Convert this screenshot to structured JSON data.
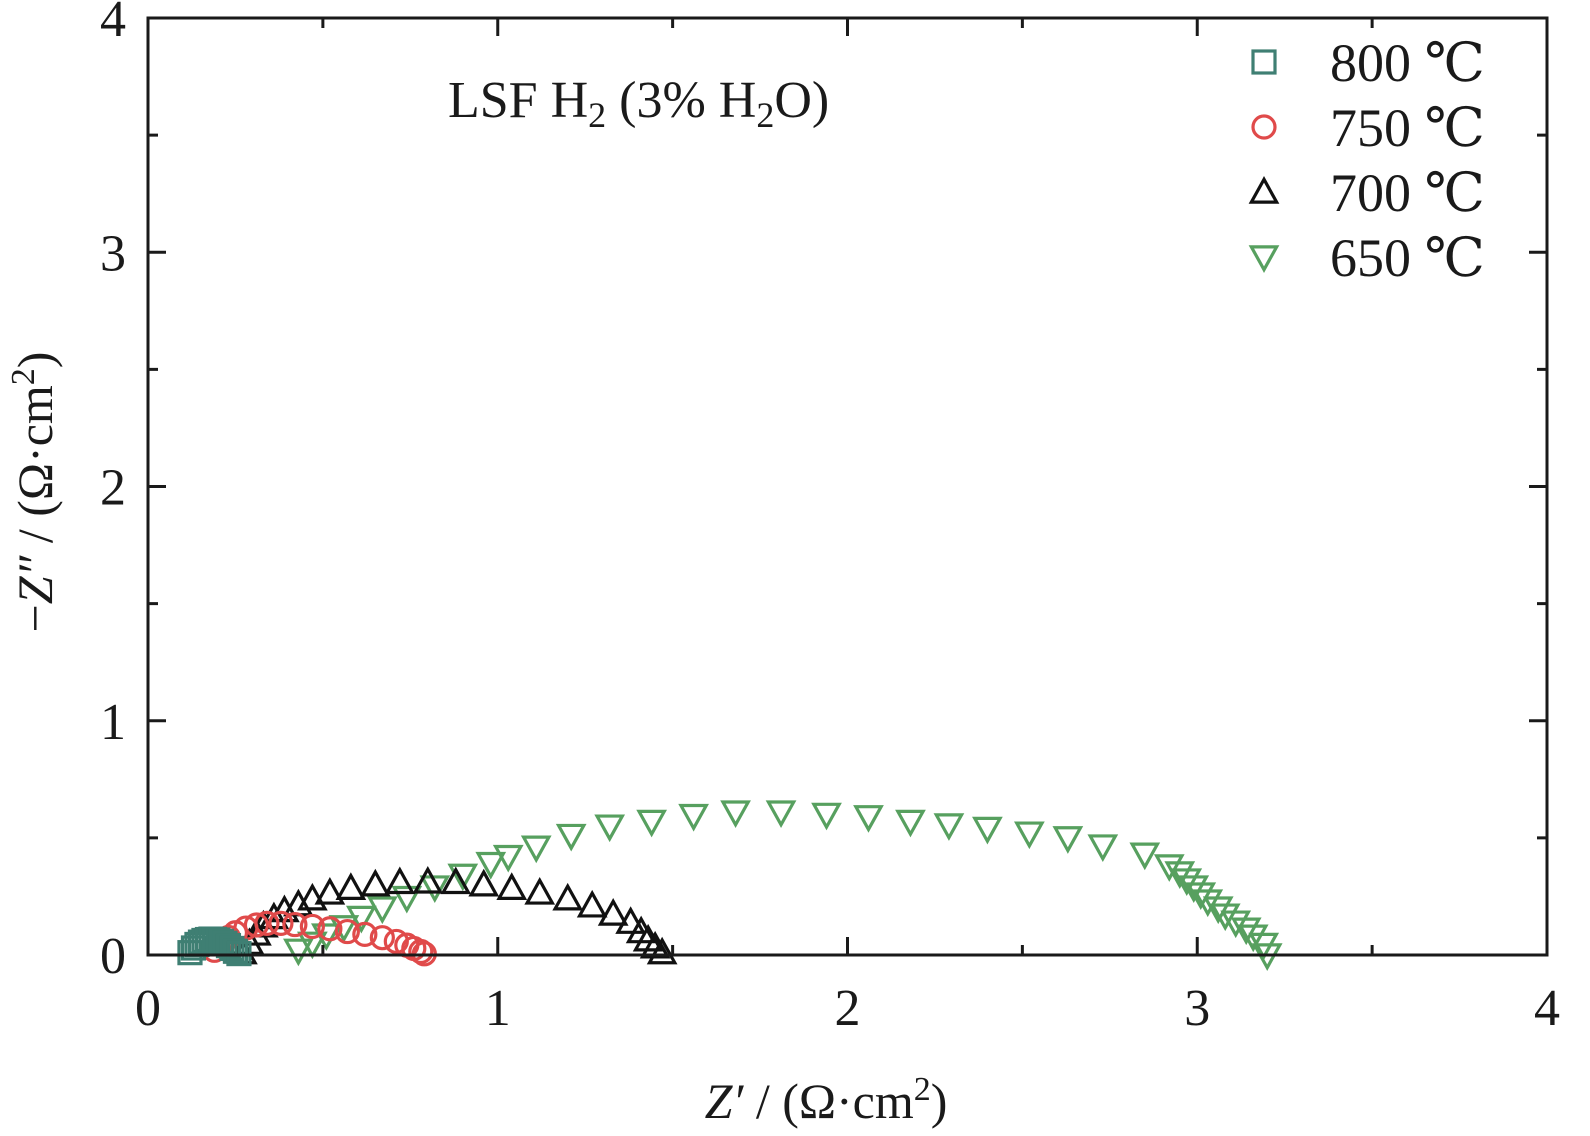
{
  "chart_data": {
    "type": "scatter",
    "title": "",
    "annotation": {
      "prefix": "LSF H",
      "sub1": "2",
      "middle": " (3% H",
      "sub2": "2",
      "suffix": "O)"
    },
    "xlabel": {
      "var": "Z′",
      "unit_open": " / (Ω·cm",
      "sup": "2",
      "unit_close": ")"
    },
    "ylabel": {
      "minus": "−",
      "var": "Z″",
      "unit_open": " / (Ω·cm",
      "sup": "2",
      "unit_close": ")"
    },
    "xlim": [
      0,
      4
    ],
    "ylim": [
      0,
      4
    ],
    "xticks": [
      0,
      1,
      2,
      3,
      4
    ],
    "yticks": [
      0,
      1,
      2,
      3,
      4
    ],
    "xtick_labels": [
      "0",
      "1",
      "2",
      "3",
      "4"
    ],
    "ytick_labels": [
      "0",
      "1",
      "2",
      "3",
      "4"
    ],
    "grid": false,
    "legend_position": "top-right",
    "series": [
      {
        "name": "800 ℃",
        "marker": "square",
        "color": "#3f7f73",
        "points": [
          [
            0.12,
            0.01
          ],
          [
            0.13,
            0.03
          ],
          [
            0.14,
            0.045
          ],
          [
            0.15,
            0.055
          ],
          [
            0.16,
            0.062
          ],
          [
            0.17,
            0.066
          ],
          [
            0.18,
            0.068
          ],
          [
            0.19,
            0.067
          ],
          [
            0.2,
            0.064
          ],
          [
            0.21,
            0.058
          ],
          [
            0.22,
            0.05
          ],
          [
            0.23,
            0.04
          ],
          [
            0.24,
            0.028
          ],
          [
            0.25,
            0.016
          ],
          [
            0.26,
            0.006
          ]
        ]
      },
      {
        "name": "750 ℃",
        "marker": "circle",
        "color": "#e04a4a",
        "points": [
          [
            0.19,
            0.02
          ],
          [
            0.21,
            0.05
          ],
          [
            0.23,
            0.075
          ],
          [
            0.25,
            0.095
          ],
          [
            0.28,
            0.115
          ],
          [
            0.31,
            0.128
          ],
          [
            0.34,
            0.135
          ],
          [
            0.38,
            0.135
          ],
          [
            0.42,
            0.13
          ],
          [
            0.47,
            0.122
          ],
          [
            0.52,
            0.112
          ],
          [
            0.57,
            0.1
          ],
          [
            0.62,
            0.088
          ],
          [
            0.67,
            0.074
          ],
          [
            0.71,
            0.058
          ],
          [
            0.74,
            0.042
          ],
          [
            0.76,
            0.028
          ],
          [
            0.78,
            0.015
          ],
          [
            0.79,
            0.005
          ]
        ]
      },
      {
        "name": "700 ℃",
        "marker": "triangle-up",
        "color": "#111111",
        "points": [
          [
            0.27,
            0.01
          ],
          [
            0.29,
            0.05
          ],
          [
            0.31,
            0.09
          ],
          [
            0.33,
            0.125
          ],
          [
            0.36,
            0.16
          ],
          [
            0.39,
            0.19
          ],
          [
            0.43,
            0.215
          ],
          [
            0.47,
            0.24
          ],
          [
            0.52,
            0.265
          ],
          [
            0.58,
            0.285
          ],
          [
            0.65,
            0.3
          ],
          [
            0.72,
            0.31
          ],
          [
            0.8,
            0.312
          ],
          [
            0.88,
            0.31
          ],
          [
            0.96,
            0.3
          ],
          [
            1.04,
            0.285
          ],
          [
            1.12,
            0.265
          ],
          [
            1.2,
            0.24
          ],
          [
            1.27,
            0.21
          ],
          [
            1.33,
            0.175
          ],
          [
            1.38,
            0.14
          ],
          [
            1.41,
            0.1
          ],
          [
            1.43,
            0.065
          ],
          [
            1.45,
            0.035
          ],
          [
            1.47,
            0.01
          ]
        ]
      },
      {
        "name": "650 ℃",
        "marker": "triangle-down",
        "color": "#57a05f",
        "points": [
          [
            0.43,
            0.02
          ],
          [
            0.47,
            0.05
          ],
          [
            0.51,
            0.085
          ],
          [
            0.56,
            0.12
          ],
          [
            0.61,
            0.16
          ],
          [
            0.67,
            0.2
          ],
          [
            0.74,
            0.245
          ],
          [
            0.82,
            0.29
          ],
          [
            0.9,
            0.34
          ],
          [
            0.98,
            0.39
          ],
          [
            1.03,
            0.42
          ],
          [
            1.11,
            0.46
          ],
          [
            1.21,
            0.51
          ],
          [
            1.32,
            0.55
          ],
          [
            1.44,
            0.57
          ],
          [
            1.56,
            0.595
          ],
          [
            1.68,
            0.61
          ],
          [
            1.81,
            0.61
          ],
          [
            1.94,
            0.6
          ],
          [
            2.06,
            0.59
          ],
          [
            2.18,
            0.57
          ],
          [
            2.29,
            0.555
          ],
          [
            2.4,
            0.54
          ],
          [
            2.52,
            0.52
          ],
          [
            2.63,
            0.5
          ],
          [
            2.73,
            0.465
          ],
          [
            2.85,
            0.43
          ],
          [
            2.92,
            0.38
          ],
          [
            2.95,
            0.35
          ],
          [
            2.97,
            0.32
          ],
          [
            2.99,
            0.29
          ],
          [
            3.01,
            0.26
          ],
          [
            3.03,
            0.23
          ],
          [
            3.06,
            0.2
          ],
          [
            3.08,
            0.17
          ],
          [
            3.11,
            0.14
          ],
          [
            3.14,
            0.11
          ],
          [
            3.16,
            0.08
          ],
          [
            3.19,
            0.045
          ],
          [
            3.2,
            0.0
          ]
        ]
      }
    ]
  }
}
